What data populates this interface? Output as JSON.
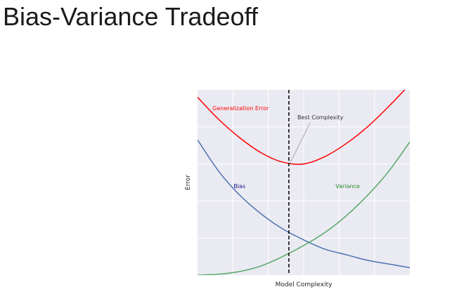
{
  "page": {
    "title": "Bias-Variance Tradeoff"
  },
  "chart_data": {
    "type": "line",
    "xlabel": "Model Complexity",
    "ylabel": "Error",
    "xlim": [
      0,
      1
    ],
    "ylim": [
      0,
      1
    ],
    "grid": true,
    "background": "#eaeaf2",
    "series": [
      {
        "name": "Generalization Error",
        "color": "#ff0000",
        "x": [
          0.0,
          0.1,
          0.2,
          0.3,
          0.4,
          0.5,
          0.6,
          0.7,
          0.8,
          0.9,
          1.0
        ],
        "y": [
          0.96,
          0.84,
          0.74,
          0.66,
          0.61,
          0.6,
          0.64,
          0.71,
          0.8,
          0.91,
          1.03
        ]
      },
      {
        "name": "Bias",
        "color": "#4c72b0",
        "x": [
          0.0,
          0.1,
          0.2,
          0.3,
          0.4,
          0.5,
          0.6,
          0.7,
          0.8,
          0.9,
          1.0
        ],
        "y": [
          0.73,
          0.56,
          0.43,
          0.33,
          0.25,
          0.19,
          0.14,
          0.11,
          0.08,
          0.06,
          0.04
        ]
      },
      {
        "name": "Variance",
        "color": "#55a868",
        "x": [
          0.0,
          0.1,
          0.2,
          0.3,
          0.4,
          0.5,
          0.6,
          0.7,
          0.8,
          0.9,
          1.0
        ],
        "y": [
          0.0,
          0.005,
          0.02,
          0.05,
          0.1,
          0.16,
          0.23,
          0.32,
          0.43,
          0.56,
          0.72
        ]
      }
    ],
    "annotations": [
      {
        "text": "Generalization Error",
        "color": "#ff0000",
        "x": 0.07,
        "y": 0.89
      },
      {
        "text": "Bias",
        "color": "#1a1a8c",
        "x": 0.17,
        "y": 0.47
      },
      {
        "text": "Variance",
        "color": "#2e8b2e",
        "x": 0.65,
        "y": 0.47
      },
      {
        "text": "Best Complexity",
        "color": "#333333",
        "x": 0.47,
        "y": 0.84,
        "arrow_to": [
          0.43,
          0.6
        ]
      }
    ],
    "vline": {
      "x": 0.43,
      "style": "dashed",
      "color": "#000000"
    }
  }
}
